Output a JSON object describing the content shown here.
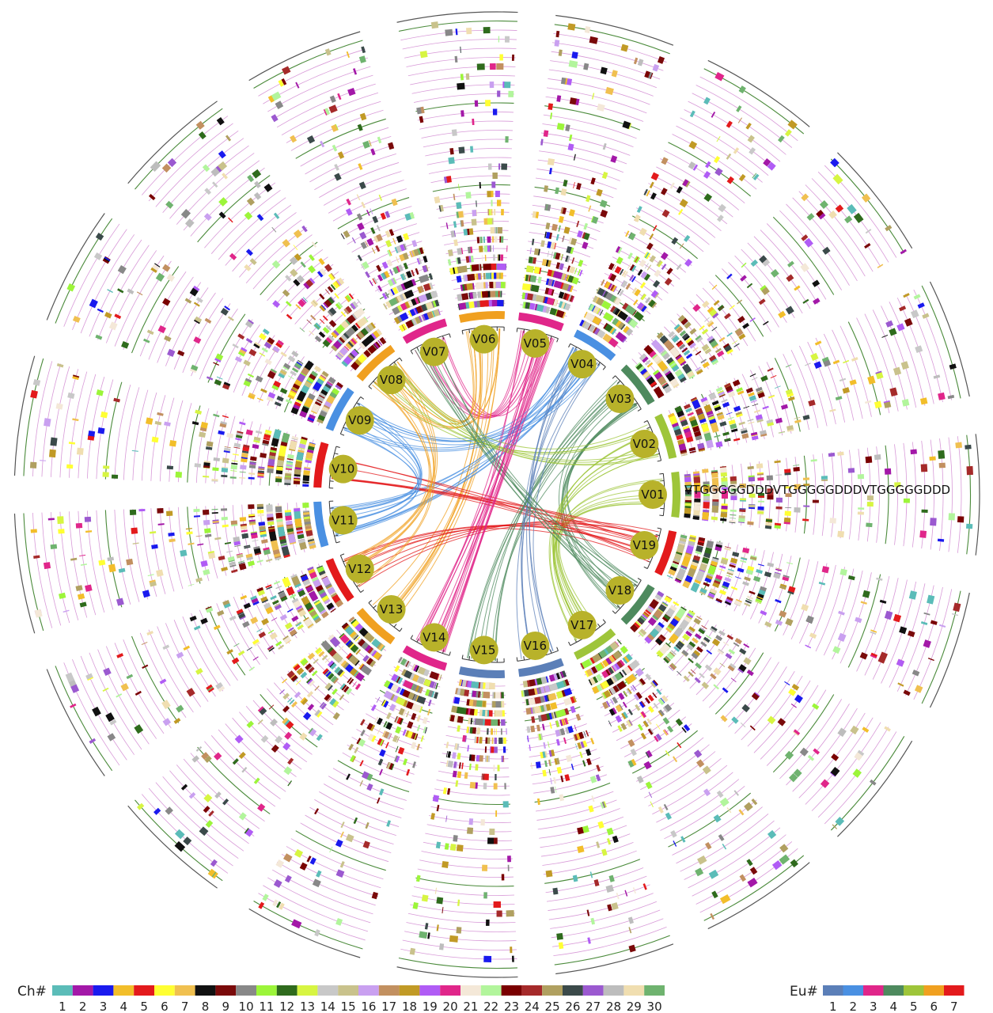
{
  "chart_data": {
    "type": "circos",
    "chromosomes": [
      "V01",
      "V02",
      "V03",
      "V04",
      "V05",
      "V06",
      "V07",
      "V08",
      "V09",
      "V10",
      "V11",
      "V12",
      "V13",
      "V14",
      "V15",
      "V16",
      "V17",
      "V18",
      "V19"
    ],
    "chromosome_eu": {
      "V01": 5,
      "V02": 5,
      "V03": 4,
      "V04": 2,
      "V05": 3,
      "V06": 6,
      "V07": 3,
      "V08": 6,
      "V09": 2,
      "V10": 7,
      "V11": 2,
      "V12": 7,
      "V13": 6,
      "V14": 3,
      "V15": 1,
      "V16": 1,
      "V17": 5,
      "V18": 4,
      "V19": 7
    },
    "track_label": "VTGGGGGDDDVTGGGGGDDDVTGGGGGDDD",
    "link_pairs": [
      [
        "V07",
        "V05"
      ],
      [
        "V06",
        "V08"
      ],
      [
        "V06",
        "V13"
      ],
      [
        "V05",
        "V14"
      ],
      [
        "V04",
        "V09"
      ],
      [
        "V04",
        "V11"
      ],
      [
        "V03",
        "V18"
      ],
      [
        "V02",
        "V17"
      ],
      [
        "V01",
        "V17"
      ],
      [
        "V10",
        "V19"
      ],
      [
        "V12",
        "V19"
      ],
      [
        "V09",
        "V11"
      ],
      [
        "V08",
        "V12"
      ],
      [
        "V03",
        "V15"
      ],
      [
        "V02",
        "V08"
      ],
      [
        "V16",
        "V04"
      ],
      [
        "V18",
        "V07"
      ],
      [
        "V14",
        "V05"
      ]
    ],
    "legends": {
      "chromosome": {
        "title": "Ch#",
        "labels": [
          "1",
          "2",
          "3",
          "4",
          "5",
          "6",
          "7",
          "8",
          "9",
          "10",
          "11",
          "12",
          "13",
          "14",
          "15",
          "16",
          "17",
          "18",
          "19",
          "20",
          "21",
          "22",
          "23",
          "24",
          "25",
          "26",
          "27",
          "28",
          "29",
          "30"
        ],
        "colors": [
          "#5bbcb8",
          "#a318a8",
          "#1a1aee",
          "#f2be2a",
          "#e31a1c",
          "#ffff33",
          "#f0c050",
          "#111111",
          "#7a0a0a",
          "#888888",
          "#9cf53a",
          "#2f6b1d",
          "#d7f542",
          "#c8c8c8",
          "#c9c28c",
          "#c9a0f0",
          "#c29060",
          "#c19a26",
          "#b05cf5",
          "#e0268a",
          "#f4e8d8",
          "#b2f59c",
          "#7a0000",
          "#a52a2a",
          "#b0a060",
          "#3b4a4a",
          "#9b59d0",
          "#bdbdbd",
          "#f0deb0",
          "#6fb36f"
        ]
      },
      "eu": {
        "title": "Eu#",
        "labels": [
          "1",
          "2",
          "3",
          "4",
          "5",
          "6",
          "7"
        ],
        "colors": [
          "#5b7fb8",
          "#4a90e2",
          "#e0268a",
          "#4e8a5e",
          "#9ec53a",
          "#f0a020",
          "#e31a1c"
        ]
      }
    }
  }
}
